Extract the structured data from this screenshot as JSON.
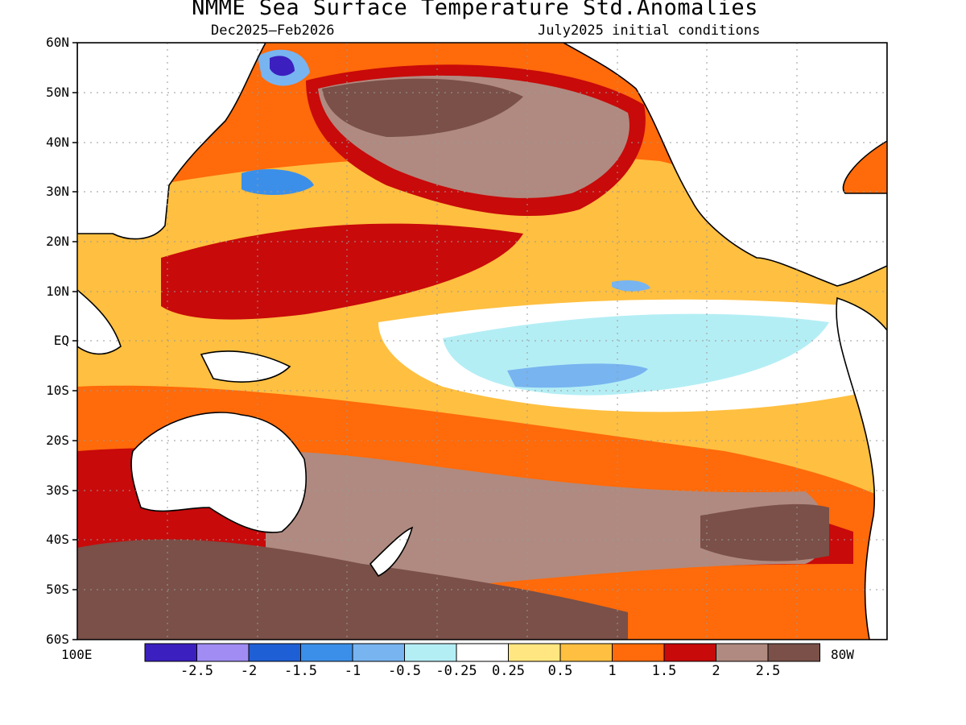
{
  "title": "NMME Sea Surface Temperature Std.Anomalies",
  "subtitle_left": "Dec2025–Feb2026",
  "subtitle_right": "July2025 initial conditions",
  "lat_labels": [
    "60N",
    "50N",
    "40N",
    "30N",
    "20N",
    "10N",
    "EQ",
    "10S",
    "20S",
    "30S",
    "40S",
    "50S",
    "60S"
  ],
  "lon_labels": {
    "left": "100E",
    "right": "80W"
  },
  "colorbar": {
    "colors": [
      "#3b1fbf",
      "#a08cf2",
      "#1f5fd6",
      "#3c8fe8",
      "#78b4f0",
      "#b4eef5",
      "#ffffff",
      "#ffe680",
      "#ffbf40",
      "#ff6a0a",
      "#c80a0a",
      "#b08a80",
      "#7a5048"
    ],
    "labels": [
      "-2.5",
      "-2",
      "-1.5",
      "-1",
      "-0.5",
      "-0.25",
      "0.25",
      "0.5",
      "1",
      "1.5",
      "2",
      "2.5"
    ]
  },
  "legend_colors": {
    "strong_warm": "#7a5048",
    "warm_2": "#b08a80",
    "warm_15": "#c80a0a",
    "warm_1": "#ff6a0a",
    "warm_05": "#ffbf40",
    "warm_025": "#ffe680",
    "neutral": "#ffffff",
    "cool_025": "#b4eef5",
    "cool_05": "#78b4f0",
    "cool_1": "#3c8fe8",
    "cool_2": "#3b1fbf",
    "land_outline": "#000000"
  }
}
